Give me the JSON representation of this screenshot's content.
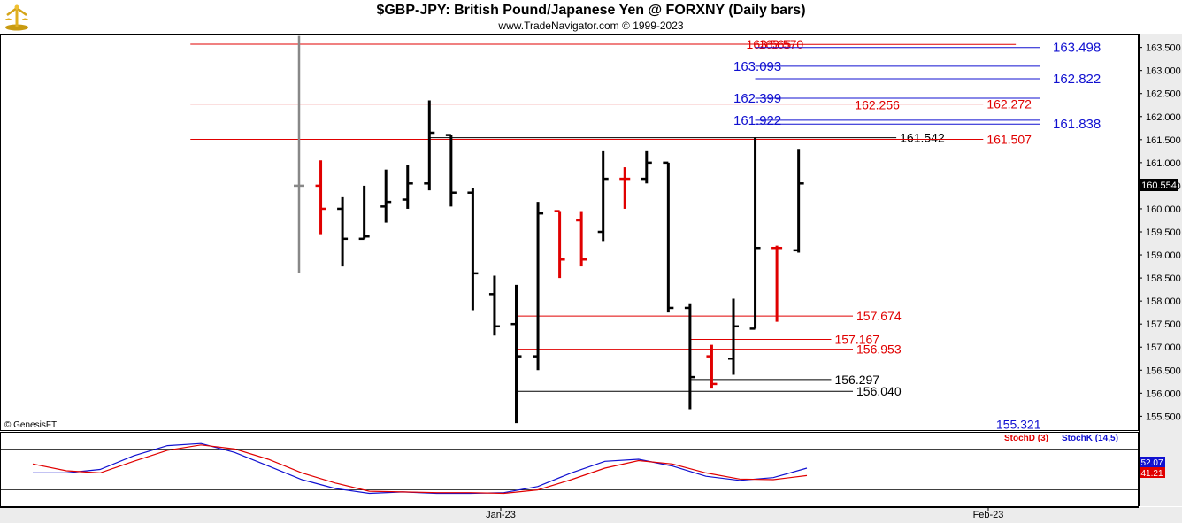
{
  "header": {
    "title": "$GBP-JPY:  British Pound/Japanese Yen @ FORXNY  (Daily bars)",
    "subtitle": "www.TradeNavigator.com © 1999-2023"
  },
  "watermark": "© GenesisFT",
  "colors": {
    "up_bar": "#000000",
    "down_bar": "#e00000",
    "blue_level": "#1010d0",
    "red_level": "#e00000",
    "stoch_k": "#1010d0",
    "stoch_d": "#e00000",
    "last_price_bg": "#000000"
  },
  "icons": {
    "logo": "genesis-gold-logo-icon"
  },
  "chart_data": [
    {
      "type": "ohlc",
      "ylim": [
        155.2,
        163.8
      ],
      "yticks": [
        "163.500",
        "163.000",
        "162.500",
        "162.000",
        "161.500",
        "161.000",
        "160.500",
        "160.000",
        "159.500",
        "159.000",
        "158.500",
        "158.000",
        "157.500",
        "157.000",
        "156.500",
        "156.000",
        "155.500"
      ],
      "ytick_values": [
        163.5,
        163.0,
        162.5,
        162.0,
        161.5,
        161.0,
        160.5,
        160.0,
        159.5,
        159.0,
        158.5,
        158.0,
        157.5,
        157.0,
        156.5,
        156.0,
        155.5
      ],
      "x_labels": [
        "Jan-23",
        "Feb-23"
      ],
      "last_price": "160.554",
      "bars": [
        {
          "o": 160.5,
          "h": 163.75,
          "l": 158.6,
          "c": 160.5,
          "color": "gray"
        },
        {
          "o": 160.5,
          "h": 161.05,
          "l": 159.45,
          "c": 160.0,
          "color": "red"
        },
        {
          "o": 160.0,
          "h": 160.25,
          "l": 158.75,
          "c": 159.35,
          "color": "black"
        },
        {
          "o": 159.35,
          "h": 160.5,
          "l": 159.35,
          "c": 159.4,
          "color": "black"
        },
        {
          "o": 160.05,
          "h": 160.85,
          "l": 159.7,
          "c": 160.15,
          "color": "black"
        },
        {
          "o": 160.2,
          "h": 160.95,
          "l": 160.0,
          "c": 160.55,
          "color": "black"
        },
        {
          "o": 160.55,
          "h": 162.35,
          "l": 160.4,
          "c": 161.65,
          "color": "black"
        },
        {
          "o": 161.6,
          "h": 161.6,
          "l": 160.05,
          "c": 160.35,
          "color": "black"
        },
        {
          "o": 160.35,
          "h": 160.45,
          "l": 157.8,
          "c": 158.6,
          "color": "black"
        },
        {
          "o": 158.15,
          "h": 158.55,
          "l": 157.25,
          "c": 157.45,
          "color": "black"
        },
        {
          "o": 157.5,
          "h": 158.35,
          "l": 155.35,
          "c": 156.8,
          "color": "black"
        },
        {
          "o": 156.8,
          "h": 160.15,
          "l": 156.5,
          "c": 159.9,
          "color": "black"
        },
        {
          "o": 159.95,
          "h": 159.95,
          "l": 158.5,
          "c": 158.9,
          "color": "red"
        },
        {
          "o": 159.75,
          "h": 159.95,
          "l": 158.75,
          "c": 158.9,
          "color": "red"
        },
        {
          "o": 159.5,
          "h": 161.25,
          "l": 159.3,
          "c": 160.65,
          "color": "black"
        },
        {
          "o": 160.65,
          "h": 160.9,
          "l": 160.0,
          "c": 160.65,
          "color": "red"
        },
        {
          "o": 160.65,
          "h": 161.25,
          "l": 160.55,
          "c": 161.0,
          "color": "black"
        },
        {
          "o": 161.0,
          "h": 161.0,
          "l": 157.75,
          "c": 157.85,
          "color": "black"
        },
        {
          "o": 157.85,
          "h": 157.95,
          "l": 155.65,
          "c": 156.35,
          "color": "black"
        },
        {
          "o": 156.8,
          "h": 157.05,
          "l": 156.1,
          "c": 156.2,
          "color": "red"
        },
        {
          "o": 156.75,
          "h": 158.05,
          "l": 156.4,
          "c": 157.45,
          "color": "black"
        },
        {
          "o": 157.4,
          "h": 161.55,
          "l": 157.4,
          "c": 159.15,
          "color": "black"
        },
        {
          "o": 159.15,
          "h": 159.2,
          "l": 157.55,
          "c": 159.15,
          "color": "red"
        },
        {
          "o": 159.1,
          "h": 161.3,
          "l": 159.05,
          "c": 160.55,
          "color": "black"
        }
      ],
      "levels": [
        {
          "value": 163.57,
          "label": "163.570",
          "color": "red",
          "x0_bar": -5,
          "x1_bar": 21
        },
        {
          "value": 163.565,
          "label": "163.565",
          "color": "red",
          "x0_bar": 21,
          "x1_bar": 33,
          "label_at": "mid"
        },
        {
          "value": 163.498,
          "label": "163.498",
          "color": "blue",
          "x0_bar": 21,
          "x1_bar": 34.1
        },
        {
          "value": 163.093,
          "label": "163.093",
          "color": "blue",
          "x0_bar": 21,
          "x1_bar": 34.1
        },
        {
          "value": 162.822,
          "label": "162.822",
          "color": "blue",
          "x0_bar": 21,
          "x1_bar": 34.1
        },
        {
          "value": 162.399,
          "label": "162.399",
          "color": "blue",
          "x0_bar": 21,
          "x1_bar": 34.1
        },
        {
          "value": 162.272,
          "label": "162.272",
          "color": "red",
          "x0_bar": -5,
          "x1_bar": 31.5
        },
        {
          "value": 162.256,
          "label": "162.256",
          "color": "red",
          "x0_bar": 26,
          "x1_bar": 26
        },
        {
          "value": 161.922,
          "label": "161.922",
          "color": "blue",
          "x0_bar": 21,
          "x1_bar": 34.1
        },
        {
          "value": 161.838,
          "label": "161.838",
          "color": "blue",
          "x0_bar": 21,
          "x1_bar": 34.1
        },
        {
          "value": 161.542,
          "label": "161.542",
          "color": "black",
          "x0_bar": 6,
          "x1_bar": 27.5
        },
        {
          "value": 161.507,
          "label": "161.507",
          "color": "red",
          "x0_bar": -5,
          "x1_bar": 31.5
        },
        {
          "value": 157.674,
          "label": "157.674",
          "color": "red",
          "x0_bar": 10,
          "x1_bar": 25.5
        },
        {
          "value": 157.167,
          "label": "157.167",
          "color": "red",
          "x0_bar": 18,
          "x1_bar": 24.5
        },
        {
          "value": 156.953,
          "label": "156.953",
          "color": "red",
          "x0_bar": 10,
          "x1_bar": 25.5
        },
        {
          "value": 156.297,
          "label": "156.297",
          "color": "black",
          "x0_bar": 18,
          "x1_bar": 24.5
        },
        {
          "value": 156.04,
          "label": "156.040",
          "color": "black",
          "x0_bar": 10,
          "x1_bar": 25.5
        },
        {
          "value": 155.321,
          "label": "155.321",
          "color": "blue",
          "x0_bar": 32.5,
          "x1_bar": 32.5
        }
      ]
    },
    {
      "type": "line",
      "indicator_labels": [
        "StochD (3)",
        "StochK (14,5)"
      ],
      "ylim": [
        0,
        100
      ],
      "band_upper": 80,
      "band_lower": 20,
      "last_values": [
        "52.07",
        "41.21"
      ],
      "series": [
        {
          "name": "StochK (14,5)",
          "color": "blue",
          "values": [
            45,
            45,
            50,
            70,
            85,
            88,
            75,
            55,
            35,
            22,
            15,
            17,
            15,
            15,
            16,
            25,
            45,
            62,
            65,
            55,
            40,
            34,
            38,
            52
          ]
        },
        {
          "name": "StochD (3)",
          "color": "red",
          "values": [
            58,
            48,
            45,
            62,
            78,
            86,
            80,
            65,
            45,
            30,
            18,
            17,
            16,
            16,
            15,
            20,
            35,
            52,
            63,
            58,
            45,
            36,
            35,
            41
          ]
        }
      ]
    }
  ]
}
